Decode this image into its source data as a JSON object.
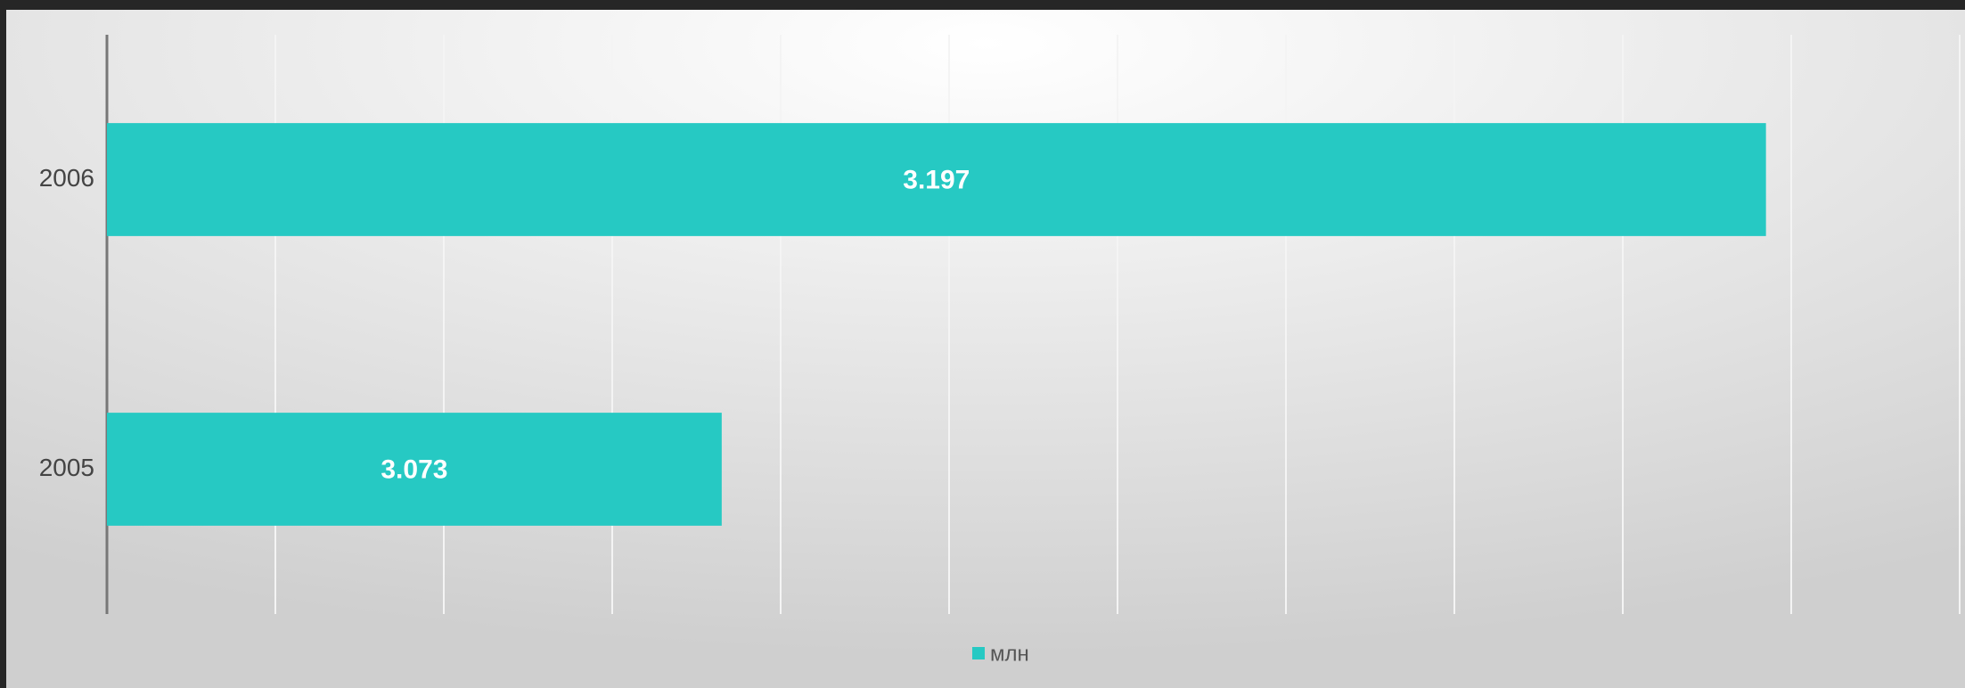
{
  "chart_data": {
    "type": "barh",
    "categories": [
      "2006",
      "2005"
    ],
    "series": [
      {
        "name": "млн",
        "color": "#26c9c3",
        "values": [
          3.197,
          3.073
        ]
      }
    ],
    "xlim": [
      3.0,
      3.22
    ],
    "xticks": [
      3.0,
      3.02,
      3.04,
      3.06,
      3.08,
      3.1,
      3.12,
      3.14,
      3.16,
      3.18,
      3.2,
      3.22
    ],
    "grid": true,
    "legend": "bottom"
  }
}
